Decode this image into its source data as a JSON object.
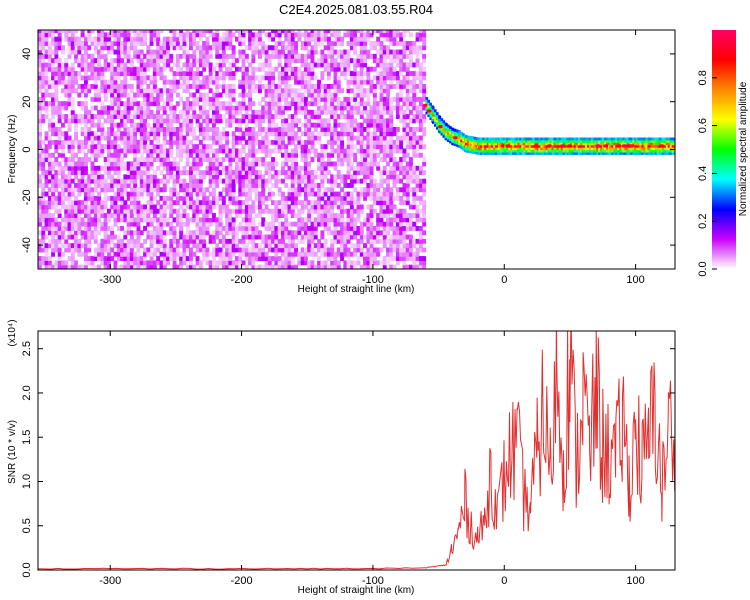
{
  "title": "C2E4.2025.081.03.55.R04",
  "chart_data": [
    {
      "type": "heatmap",
      "xlabel": "Height of straight line (km)",
      "ylabel": "Frequency (Hz)",
      "xlim": [
        -355,
        130
      ],
      "ylim": [
        -50,
        50
      ],
      "x_ticks": [
        -300,
        -200,
        -100,
        0,
        100
      ],
      "y_ticks": [
        -40,
        -20,
        0,
        20,
        40
      ],
      "noise_region": {
        "x": [
          -355,
          -60
        ],
        "f": [
          -50,
          50
        ]
      },
      "signal_band": {
        "x": [
          -60,
          -55,
          -50,
          -45,
          -40,
          -35,
          -30,
          -25,
          -20,
          -15,
          -10,
          -5,
          0,
          10,
          20,
          30,
          40,
          50,
          60,
          70,
          80,
          90,
          100,
          110,
          120,
          130
        ],
        "f": [
          18,
          14,
          10,
          7,
          5,
          4,
          2,
          1.5,
          1,
          1,
          1,
          1,
          1,
          1,
          1,
          1,
          1,
          1,
          1,
          1,
          1,
          1,
          1,
          1,
          1,
          1
        ]
      },
      "colorbar": {
        "label": "Normalized spectral amplitude",
        "range": [
          0.0,
          1.0
        ],
        "ticks": [
          "0.0",
          "0.2",
          "0.4",
          "0.6",
          "0.8"
        ],
        "colors": [
          "#ffffff",
          "#cc00ff",
          "#0000ff",
          "#00ffff",
          "#00ff00",
          "#ffff00",
          "#ff8800",
          "#ff0000",
          "#ff0066"
        ]
      }
    },
    {
      "type": "line",
      "xlabel": "Height of straight line (km)",
      "ylabel": "SNR (10 * v/v)",
      "y_scale_label": "(x10⁴)",
      "xlim": [
        -355,
        130
      ],
      "ylim": [
        0,
        2.7
      ],
      "x_ticks": [
        -300,
        -200,
        -100,
        0,
        100
      ],
      "y_ticks": [
        "0.0",
        "0.5",
        "1.0",
        "1.5",
        "2.0",
        "2.5"
      ],
      "series": [
        {
          "color": "#e03030",
          "x": [
            -355,
            -300,
            -250,
            -200,
            -150,
            -100,
            -60,
            -45,
            -40,
            -35,
            -30,
            -25,
            -20,
            -15,
            -10,
            -5,
            0,
            5,
            10,
            15,
            20,
            25,
            30,
            35,
            40,
            45,
            50,
            55,
            60,
            65,
            70,
            75,
            80,
            85,
            90,
            95,
            100,
            105,
            110,
            115,
            120,
            125,
            130
          ],
          "y": [
            0.01,
            0.01,
            0.01,
            0.01,
            0.01,
            0.01,
            0.02,
            0.05,
            0.25,
            0.45,
            0.85,
            0.55,
            0.4,
            0.6,
            1.3,
            0.7,
            1.15,
            1.45,
            1.55,
            0.9,
            0.8,
            1.45,
            2.05,
            1.25,
            2.55,
            1.4,
            2.6,
            1.3,
            2.25,
            1.45,
            2.2,
            1.55,
            1.45,
            1.35,
            1.9,
            1.1,
            1.75,
            1.3,
            1.6,
            2.05,
            1.0,
            1.75,
            1.8
          ]
        }
      ]
    }
  ]
}
